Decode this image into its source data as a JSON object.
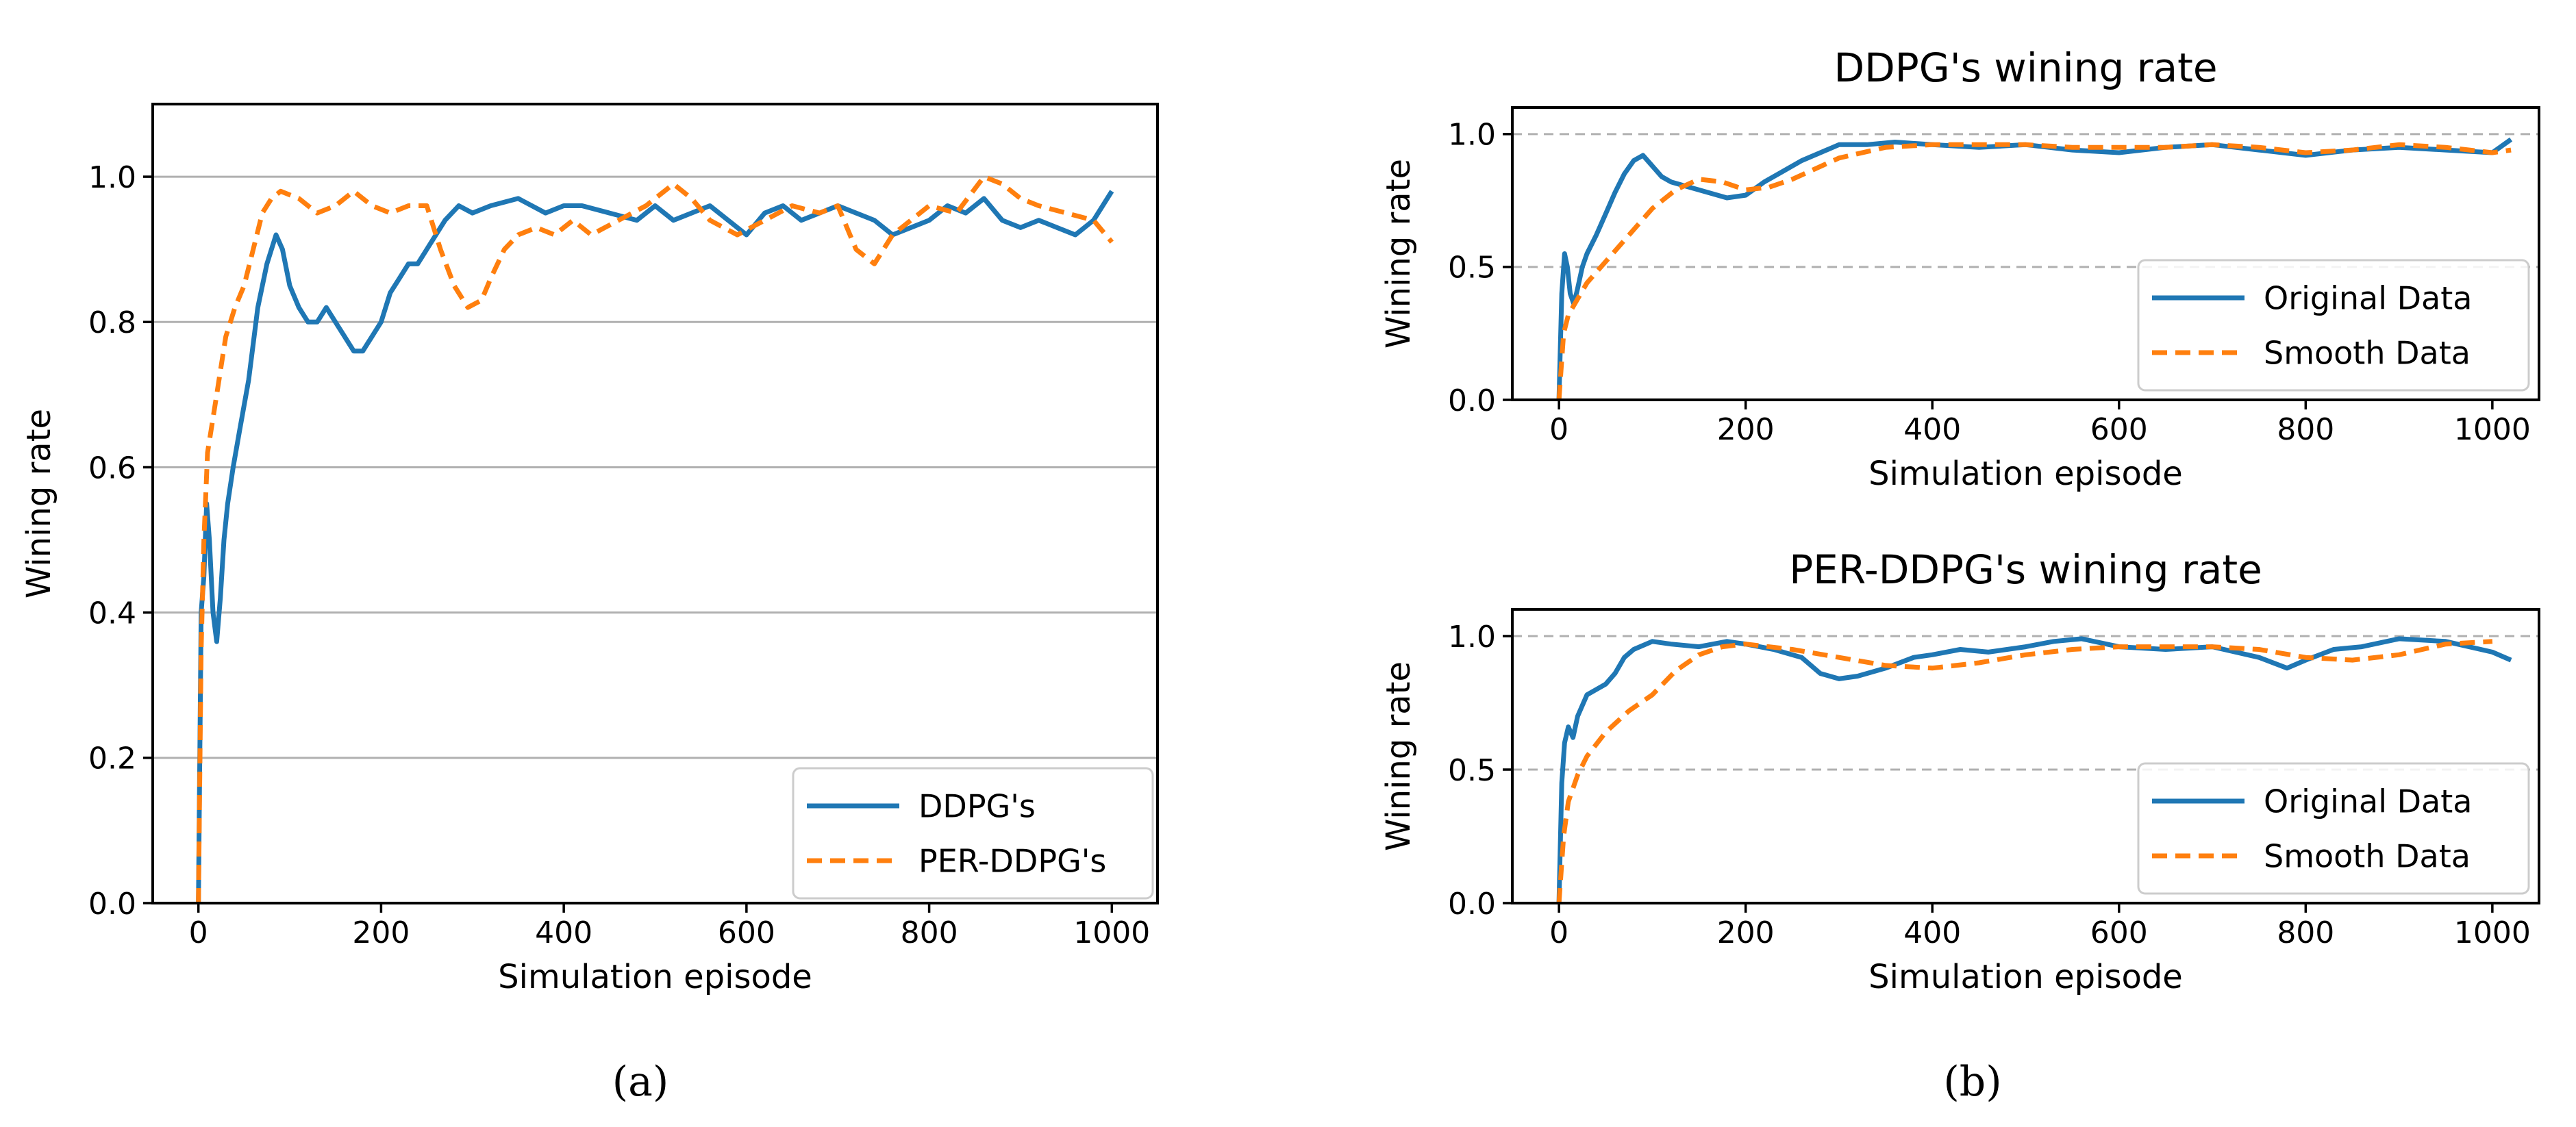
{
  "colors": {
    "original": "#1f77b4",
    "smooth": "#ff7f0e"
  },
  "captions": {
    "a": "(a)",
    "b": "(b)"
  },
  "chart_data": [
    {
      "id": "a",
      "type": "line",
      "title": "",
      "xlabel": "Simulation episode",
      "ylabel": "Wining rate",
      "xlim": [
        -50,
        1050
      ],
      "ylim": [
        0,
        1.1
      ],
      "xticks": [
        0,
        200,
        400,
        600,
        800,
        1000
      ],
      "yticks": [
        0.0,
        0.2,
        0.4,
        0.6,
        0.8,
        1.0
      ],
      "xtick_labels": [
        "0",
        "200",
        "400",
        "600",
        "800",
        "1000"
      ],
      "ytick_labels": [
        "0.0",
        "0.2",
        "0.4",
        "0.6",
        "0.8",
        "1.0"
      ],
      "grid": "horizontal",
      "legend_position": "lower-right",
      "series": [
        {
          "name": "DDPG's",
          "style": "solid",
          "color": "#1f77b4",
          "x": [
            0,
            3,
            6,
            9,
            12,
            16,
            20,
            24,
            28,
            32,
            38,
            45,
            55,
            65,
            75,
            85,
            92,
            100,
            110,
            120,
            130,
            140,
            150,
            160,
            170,
            180,
            190,
            200,
            210,
            220,
            230,
            240,
            250,
            260,
            270,
            285,
            300,
            320,
            350,
            380,
            400,
            420,
            450,
            480,
            500,
            520,
            540,
            560,
            580,
            600,
            620,
            640,
            660,
            680,
            700,
            720,
            740,
            760,
            780,
            800,
            820,
            840,
            860,
            880,
            900,
            920,
            940,
            960,
            980,
            1000
          ],
          "values": [
            0.0,
            0.4,
            0.45,
            0.55,
            0.5,
            0.4,
            0.36,
            0.42,
            0.5,
            0.55,
            0.6,
            0.65,
            0.72,
            0.82,
            0.88,
            0.92,
            0.9,
            0.85,
            0.82,
            0.8,
            0.8,
            0.82,
            0.8,
            0.78,
            0.76,
            0.76,
            0.78,
            0.8,
            0.84,
            0.86,
            0.88,
            0.88,
            0.9,
            0.92,
            0.94,
            0.96,
            0.95,
            0.96,
            0.97,
            0.95,
            0.96,
            0.96,
            0.95,
            0.94,
            0.96,
            0.94,
            0.95,
            0.96,
            0.94,
            0.92,
            0.95,
            0.96,
            0.94,
            0.95,
            0.96,
            0.95,
            0.94,
            0.92,
            0.93,
            0.94,
            0.96,
            0.95,
            0.97,
            0.94,
            0.93,
            0.94,
            0.93,
            0.92,
            0.94,
            0.98
          ]
        },
        {
          "name": "PER-DDPG's",
          "style": "dashed",
          "color": "#ff7f0e",
          "x": [
            0,
            3,
            6,
            10,
            15,
            20,
            25,
            30,
            35,
            40,
            50,
            60,
            70,
            80,
            90,
            110,
            130,
            150,
            170,
            190,
            210,
            230,
            250,
            265,
            280,
            295,
            310,
            320,
            335,
            350,
            370,
            390,
            410,
            430,
            460,
            490,
            520,
            540,
            560,
            590,
            620,
            650,
            680,
            700,
            720,
            740,
            760,
            780,
            800,
            830,
            860,
            880,
            900,
            920,
            950,
            980,
            1000
          ],
          "values": [
            0.0,
            0.35,
            0.5,
            0.62,
            0.66,
            0.7,
            0.74,
            0.78,
            0.8,
            0.82,
            0.85,
            0.9,
            0.95,
            0.97,
            0.98,
            0.97,
            0.95,
            0.96,
            0.98,
            0.96,
            0.95,
            0.96,
            0.96,
            0.9,
            0.85,
            0.82,
            0.83,
            0.86,
            0.9,
            0.92,
            0.93,
            0.92,
            0.94,
            0.92,
            0.94,
            0.96,
            0.99,
            0.97,
            0.94,
            0.92,
            0.94,
            0.96,
            0.95,
            0.96,
            0.9,
            0.88,
            0.92,
            0.94,
            0.96,
            0.95,
            1.0,
            0.99,
            0.97,
            0.96,
            0.95,
            0.94,
            0.91
          ]
        }
      ]
    },
    {
      "id": "b1",
      "type": "line",
      "title": "DDPG's wining rate",
      "xlabel": "Simulation episode",
      "ylabel": "Wining rate",
      "xlim": [
        -50,
        1050
      ],
      "ylim": [
        0,
        1.1
      ],
      "xticks": [
        0,
        200,
        400,
        600,
        800,
        1000
      ],
      "yticks": [
        0.0,
        0.5,
        1.0
      ],
      "xtick_labels": [
        "0",
        "200",
        "400",
        "600",
        "800",
        "1000"
      ],
      "ytick_labels": [
        "0.0",
        "0.5",
        "1.0"
      ],
      "grid": "horizontal-dashed",
      "legend_position": "center-right",
      "series": [
        {
          "name": "Original Data",
          "style": "solid",
          "color": "#1f77b4",
          "x": [
            0,
            3,
            6,
            9,
            12,
            16,
            20,
            25,
            30,
            40,
            50,
            60,
            70,
            80,
            90,
            100,
            110,
            120,
            140,
            160,
            180,
            200,
            220,
            240,
            260,
            280,
            300,
            330,
            360,
            400,
            450,
            500,
            550,
            600,
            650,
            700,
            750,
            800,
            850,
            900,
            950,
            1000,
            1020
          ],
          "values": [
            0.0,
            0.4,
            0.55,
            0.5,
            0.4,
            0.36,
            0.42,
            0.5,
            0.55,
            0.62,
            0.7,
            0.78,
            0.85,
            0.9,
            0.92,
            0.88,
            0.84,
            0.82,
            0.8,
            0.78,
            0.76,
            0.77,
            0.82,
            0.86,
            0.9,
            0.93,
            0.96,
            0.96,
            0.97,
            0.96,
            0.95,
            0.96,
            0.94,
            0.93,
            0.95,
            0.96,
            0.94,
            0.92,
            0.94,
            0.95,
            0.94,
            0.93,
            0.98
          ]
        },
        {
          "name": "Smooth Data",
          "style": "dashed",
          "color": "#ff7f0e",
          "x": [
            0,
            5,
            10,
            20,
            30,
            50,
            75,
            100,
            125,
            150,
            175,
            200,
            225,
            250,
            275,
            300,
            350,
            400,
            450,
            500,
            550,
            600,
            650,
            700,
            750,
            800,
            850,
            900,
            950,
            1000,
            1020
          ],
          "values": [
            0.0,
            0.25,
            0.32,
            0.38,
            0.44,
            0.52,
            0.62,
            0.72,
            0.79,
            0.83,
            0.82,
            0.79,
            0.8,
            0.83,
            0.87,
            0.91,
            0.95,
            0.96,
            0.96,
            0.96,
            0.95,
            0.95,
            0.95,
            0.96,
            0.95,
            0.93,
            0.94,
            0.96,
            0.95,
            0.93,
            0.94
          ]
        }
      ]
    },
    {
      "id": "b2",
      "type": "line",
      "title": "PER-DDPG's wining rate",
      "xlabel": "Simulation episode",
      "ylabel": "Wining rate",
      "xlim": [
        -50,
        1050
      ],
      "ylim": [
        0,
        1.1
      ],
      "xticks": [
        0,
        200,
        400,
        600,
        800,
        1000
      ],
      "yticks": [
        0.0,
        0.5,
        1.0
      ],
      "xtick_labels": [
        "0",
        "200",
        "400",
        "600",
        "800",
        "1000"
      ],
      "ytick_labels": [
        "0.0",
        "0.5",
        "1.0"
      ],
      "grid": "horizontal-dashed",
      "legend_position": "center-right",
      "series": [
        {
          "name": "Original Data",
          "style": "solid",
          "color": "#1f77b4",
          "x": [
            0,
            3,
            6,
            10,
            15,
            20,
            25,
            30,
            40,
            50,
            60,
            70,
            80,
            100,
            120,
            150,
            180,
            200,
            230,
            260,
            280,
            300,
            320,
            350,
            380,
            400,
            430,
            460,
            500,
            530,
            560,
            600,
            650,
            700,
            750,
            780,
            800,
            830,
            860,
            900,
            950,
            1000,
            1020
          ],
          "values": [
            0.0,
            0.45,
            0.6,
            0.66,
            0.62,
            0.7,
            0.74,
            0.78,
            0.8,
            0.82,
            0.86,
            0.92,
            0.95,
            0.98,
            0.97,
            0.96,
            0.98,
            0.97,
            0.95,
            0.92,
            0.86,
            0.84,
            0.85,
            0.88,
            0.92,
            0.93,
            0.95,
            0.94,
            0.96,
            0.98,
            0.99,
            0.96,
            0.95,
            0.96,
            0.92,
            0.88,
            0.91,
            0.95,
            0.96,
            0.99,
            0.98,
            0.94,
            0.91
          ]
        },
        {
          "name": "Smooth Data",
          "style": "dashed",
          "color": "#ff7f0e",
          "x": [
            0,
            5,
            10,
            20,
            30,
            50,
            75,
            100,
            125,
            150,
            175,
            200,
            250,
            300,
            350,
            400,
            450,
            500,
            550,
            600,
            650,
            700,
            750,
            800,
            850,
            900,
            950,
            1000
          ],
          "values": [
            0.0,
            0.25,
            0.38,
            0.48,
            0.55,
            0.64,
            0.72,
            0.78,
            0.87,
            0.93,
            0.96,
            0.97,
            0.95,
            0.92,
            0.89,
            0.88,
            0.9,
            0.93,
            0.95,
            0.96,
            0.96,
            0.96,
            0.95,
            0.92,
            0.91,
            0.93,
            0.97,
            0.98
          ]
        }
      ]
    }
  ]
}
